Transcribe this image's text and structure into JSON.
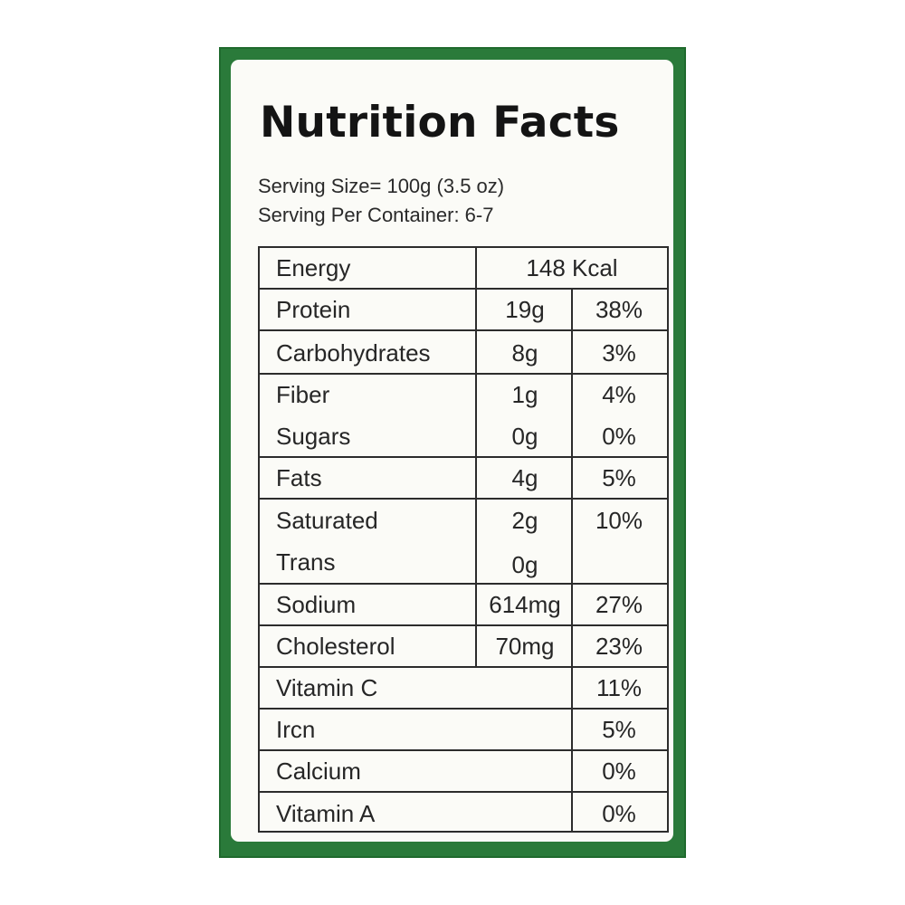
{
  "title": "Nutrition Facts",
  "serving_size": "Serving Size= 100g (3.5 oz)",
  "servings_per_container": "Serving Per Container: 6-7",
  "rows": [
    {
      "name": "Energy",
      "amount": "148 Kcal",
      "dv": ""
    },
    {
      "name": "Protein",
      "amount": "19g",
      "dv": "38%"
    },
    {
      "name": "Carbohydrates",
      "amount": "8g",
      "dv": "3%"
    },
    {
      "name": "Fiber",
      "amount": "1g",
      "dv": "4%"
    },
    {
      "name": "Sugars",
      "amount": "0g",
      "dv": "0%"
    },
    {
      "name": "Fats",
      "amount": "4g",
      "dv": "5%"
    },
    {
      "name": "Saturated",
      "amount": "2g",
      "dv": "10%"
    },
    {
      "name": "Trans",
      "amount": "0g",
      "dv": ""
    },
    {
      "name": "Sodium",
      "amount": "614mg",
      "dv": "27%"
    },
    {
      "name": "Cholesterol",
      "amount": "70mg",
      "dv": "23%"
    },
    {
      "name": "Vitamin C",
      "amount": "",
      "dv": "11%"
    },
    {
      "name": "Ircn",
      "amount": "",
      "dv": "5%"
    },
    {
      "name": "Calcium",
      "amount": "",
      "dv": "0%"
    },
    {
      "name": "Vitamin A",
      "amount": "",
      "dv": "0%"
    }
  ],
  "colors": {
    "packaging_green": "#2a7a3a",
    "label_background": "#fbfbf7",
    "text": "#262626"
  }
}
